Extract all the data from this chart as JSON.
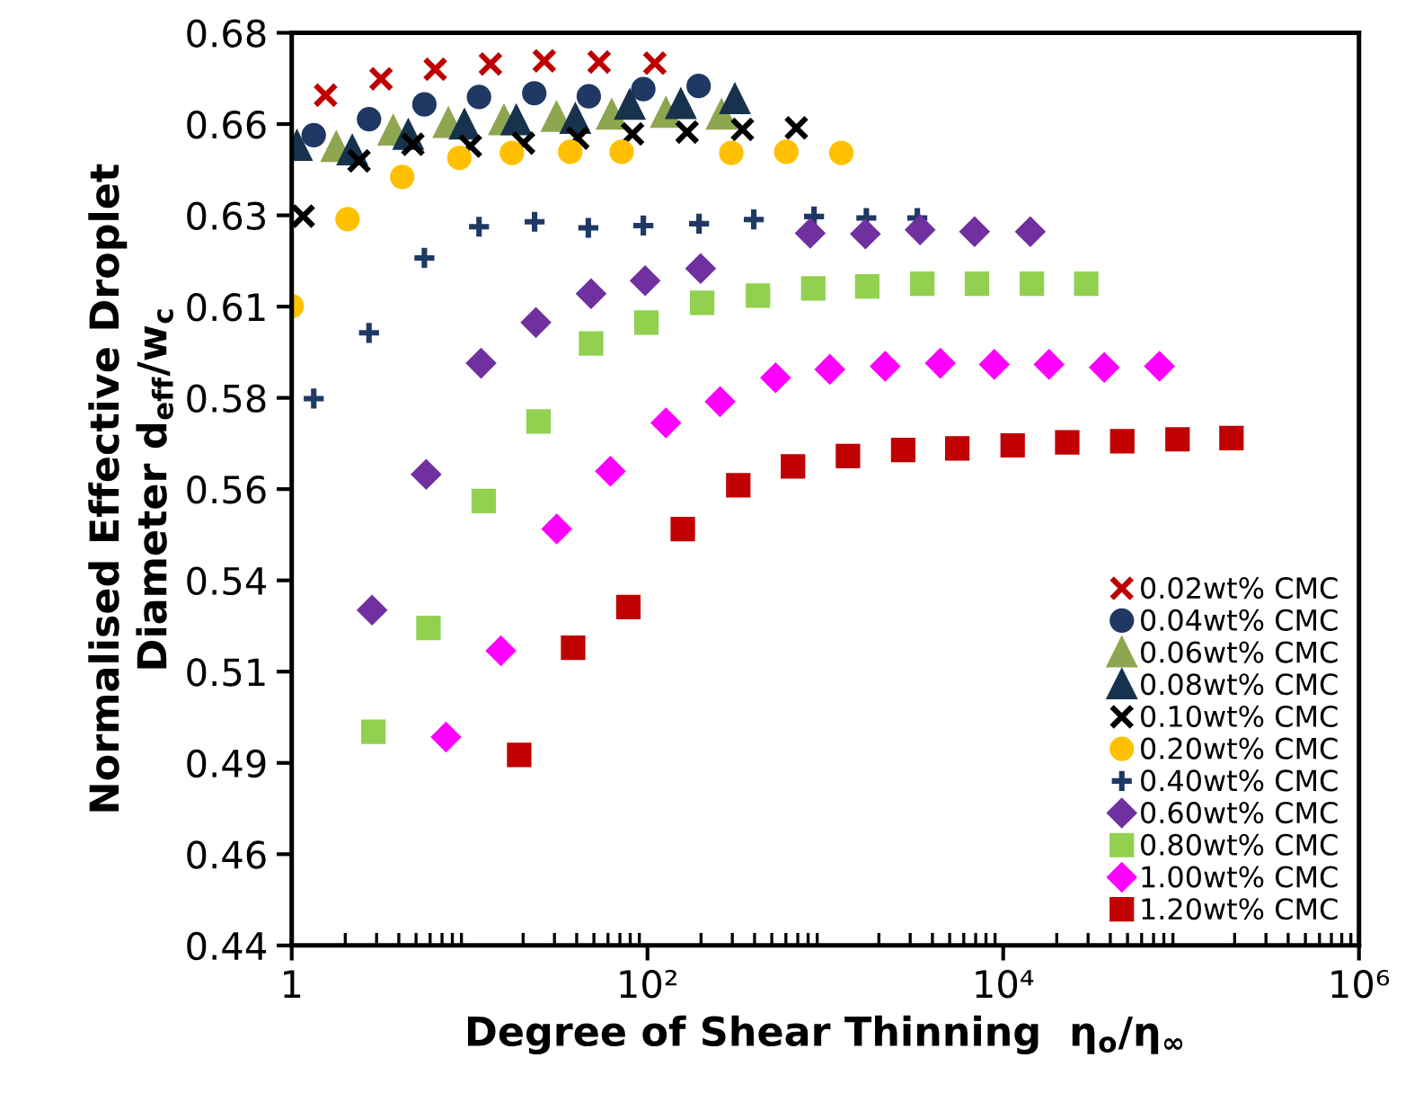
{
  "chart_data": {
    "type": "scatter",
    "xlabel": "Degree of Shear Thinning  η$_{o}$/η$_{∞}$",
    "ylabel": "Normalised Effective Droplet\nDiameter d$_{eff}$/w$_{c}$",
    "log": "x",
    "xlim": [
      1,
      1000000
    ],
    "xticks": [
      1,
      {
        "value": 100,
        "label": "10²"
      },
      {
        "value": 10000,
        "label": "10⁴"
      },
      {
        "value": 1000000,
        "label": "10⁶"
      }
    ],
    "ylim": [
      0.44,
      0.68
    ],
    "yticks": [
      0.44,
      {
        "value": 0.464,
        "label": "0.46"
      },
      {
        "value": 0.488,
        "label": "0.49"
      },
      {
        "value": 0.512,
        "label": "0.51"
      },
      {
        "value": 0.536,
        "label": "0.54"
      },
      0.56,
      {
        "value": 0.584,
        "label": "0.58"
      },
      {
        "value": 0.608,
        "label": "0.61"
      },
      {
        "value": 0.632,
        "label": "0.63"
      },
      {
        "value": 0.656,
        "label": "0.66"
      },
      0.68
    ],
    "grid": false,
    "legend": "bottom right",
    "series": [
      {
        "name": "0.02wt% CMC",
        "color": "#c00000",
        "marker": "cross",
        "x": [
          1.55,
          3.18,
          6.41,
          13.1,
          26.3,
          53.5,
          110
        ],
        "values": [
          0.6636,
          0.6679,
          0.6704,
          0.6718,
          0.6726,
          0.6723,
          0.672
        ]
      },
      {
        "name": "0.04wt% CMC",
        "color": "#1f3864",
        "marker": "circle",
        "x": [
          1.33,
          2.72,
          5.57,
          11.3,
          23.1,
          46.8,
          94.8,
          194
        ],
        "values": [
          0.6531,
          0.6573,
          0.6612,
          0.6631,
          0.6641,
          0.6633,
          0.6652,
          0.666
        ]
      },
      {
        "name": "0.06wt% CMC",
        "color": "#8ea64f",
        "marker": "triangle",
        "x": [
          1.78,
          3.72,
          7.6,
          15.6,
          30.8,
          63,
          127,
          261
        ],
        "values": [
          0.6499,
          0.6542,
          0.6562,
          0.6569,
          0.6578,
          0.6584,
          0.6589,
          0.6584
        ]
      },
      {
        "name": "0.08wt% CMC",
        "color": "#17324d",
        "marker": "triangle",
        "x": [
          1.07,
          2.19,
          4.52,
          9.36,
          18.3,
          39.3,
          79.6,
          154,
          310
        ],
        "values": [
          0.6502,
          0.649,
          0.6531,
          0.6558,
          0.6569,
          0.6573,
          0.661,
          0.6612,
          0.6625
        ]
      },
      {
        "name": "0.10wt% CMC",
        "color": "#000000",
        "marker": "cross",
        "x": [
          1.16,
          2.39,
          4.8,
          10.1,
          20.1,
          40.6,
          82.4,
          167,
          342,
          687
        ],
        "values": [
          0.6318,
          0.6463,
          0.6507,
          0.6502,
          0.651,
          0.6523,
          0.6534,
          0.6539,
          0.6546,
          0.655
        ]
      },
      {
        "name": "0.20wt% CMC",
        "color": "#ffc000",
        "marker": "circle",
        "x": [
          1.0,
          2.06,
          4.18,
          8.76,
          17.3,
          36.8,
          71.6,
          296,
          603,
          1230
        ],
        "values": [
          0.6081,
          0.631,
          0.6421,
          0.6471,
          0.6484,
          0.6487,
          0.6487,
          0.6484,
          0.6487,
          0.6484
        ]
      },
      {
        "name": "0.40wt% CMC",
        "color": "#1f3864",
        "marker": "plus",
        "x": [
          1.33,
          2.72,
          5.57,
          11.3,
          23.2,
          46.5,
          94.8,
          195,
          396,
          864,
          1700,
          3290
        ],
        "values": [
          0.5838,
          0.6011,
          0.6208,
          0.629,
          0.6303,
          0.6287,
          0.6293,
          0.6298,
          0.6309,
          0.6317,
          0.6313,
          0.6313
        ]
      },
      {
        "name": "0.60wt% CMC",
        "color": "#7030a0",
        "marker": "diamond",
        "x": [
          2.83,
          5.7,
          11.6,
          23.6,
          48.2,
          97,
          199,
          822,
          1680,
          3410,
          6900,
          14200
        ],
        "values": [
          0.5282,
          0.5639,
          0.5931,
          0.6038,
          0.6114,
          0.6148,
          0.618,
          0.6273,
          0.6271,
          0.6282,
          0.6277,
          0.6277
        ]
      },
      {
        "name": "0.80wt% CMC",
        "color": "#92d050",
        "marker": "square",
        "x": [
          2.88,
          5.87,
          12.0,
          24.4,
          48.2,
          98.6,
          203,
          418,
          855,
          1720,
          3510,
          7120,
          14500,
          29300
        ],
        "values": [
          0.4962,
          0.5235,
          0.5569,
          0.5778,
          0.5983,
          0.6038,
          0.609,
          0.6109,
          0.6128,
          0.6133,
          0.614,
          0.614,
          0.614,
          0.614
        ]
      },
      {
        "name": "1.00wt% CMC",
        "color": "#ff00ff",
        "marker": "diamond",
        "x": [
          7.37,
          15.0,
          30.9,
          61.9,
          127,
          256,
          525,
          1060,
          2170,
          4430,
          8910,
          18100,
          37000,
          75600
        ],
        "values": [
          0.4948,
          0.5175,
          0.5495,
          0.5647,
          0.5774,
          0.583,
          0.5893,
          0.5915,
          0.5923,
          0.5931,
          0.5928,
          0.5928,
          0.592,
          0.5923
        ]
      },
      {
        "name": "1.20wt% CMC",
        "color": "#c00000",
        "marker": "square",
        "x": [
          19.0,
          38.2,
          78.1,
          158,
          324,
          658,
          1340,
          2740,
          5520,
          11300,
          22900,
          46700,
          95500,
          192000
        ],
        "values": [
          0.4901,
          0.5183,
          0.529,
          0.5495,
          0.561,
          0.566,
          0.5687,
          0.5703,
          0.5707,
          0.5715,
          0.5723,
          0.5726,
          0.5731,
          0.5734
        ]
      }
    ]
  }
}
